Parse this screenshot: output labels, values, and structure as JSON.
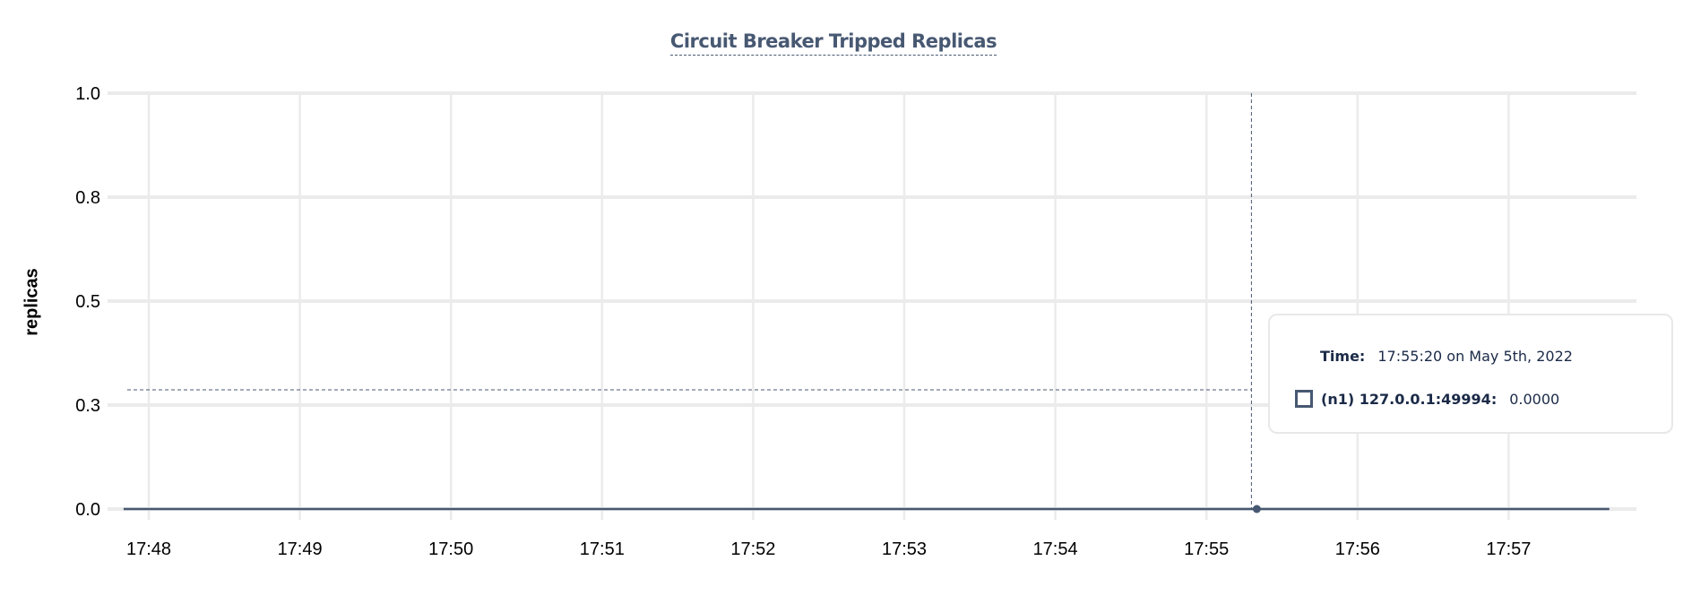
{
  "chart_data": {
    "type": "line",
    "title": "Circuit Breaker Tripped Replicas",
    "xlabel": "",
    "ylabel": "replicas",
    "ylim": [
      0,
      1
    ],
    "yticks": [
      "0.0",
      "0.3",
      "0.5",
      "0.8",
      "1.0"
    ],
    "ytick_values": [
      0,
      0.25,
      0.5,
      0.75,
      1.0
    ],
    "xticks": [
      "17:48",
      "17:49",
      "17:50",
      "17:51",
      "17:52",
      "17:53",
      "17:54",
      "17:55",
      "17:56",
      "17:57"
    ],
    "grid": true,
    "series": [
      {
        "name": "(n1) 127.0.0.1:49994",
        "color": "#475872",
        "x": [
          "17:47:50",
          "17:57:40"
        ],
        "y": [
          0,
          0
        ]
      }
    ],
    "hover": {
      "time_label": "Time:",
      "time_value": "17:55:20 on May 5th, 2022",
      "x": "17:55:20",
      "series_label": "(n1) 127.0.0.1:49994:",
      "value": "0.0000"
    }
  },
  "colors": {
    "series": "#475872",
    "grid": "#ebebeb",
    "title": "#475872",
    "tooltip_text": "#1b2a47"
  }
}
